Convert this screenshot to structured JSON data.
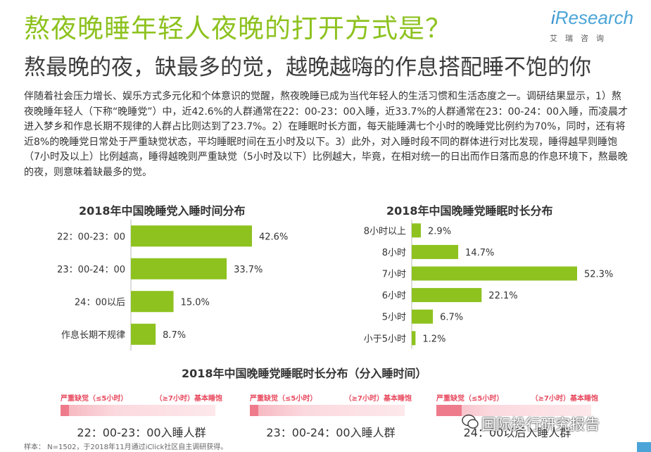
{
  "header": {
    "title": "熬夜晚睡年轻人夜晚的打开方式是？",
    "subtitle": "熬最晚的夜，缺最多的觉，越晚越嗨的作息搭配睡不饱的你"
  },
  "logo": {
    "brand_i": "i",
    "brand_rest": "Research",
    "brand_cn": "艾瑞咨询"
  },
  "intro": "伴随着社会压力增长、娱乐方式多元化和个体意识的觉醒，熬夜晚睡已成为当代年轻人的生活习惯和生活态度之一。调研结果显示，1）熬夜晚睡年轻人（下称“晚睡党”）中，近42.6%的人群通常在22：00-23：00入睡，近33.7%的人群通常在23：00-24：00入睡，而凌晨才进入梦乡和作息长期不规律的人群占比则达到了23.7%。2）在睡眠时长方面，每天能睡满七个小时的晚睡党比例约为70%，同时，还有将近8%的晚睡党日常处于严重缺觉状态，平均睡眠时间在五小时及以下。3）此外，对入睡时段不同的群体进行对比发现，睡得越早则睡饱（7小时及以上）比例越高，睡得越晚则严重缺觉（5小时及以下）比例越大，毕竟，在相对统一的日出而作日落而息的作息环境下，熬最晚的夜，则意味着缺最多的觉。",
  "chart_data": [
    {
      "type": "bar",
      "orientation": "horizontal",
      "title": "2018年中国晚睡党入睡时间分布",
      "categories": [
        "22：00-23：00",
        "23：00-24：00",
        "24：00以后",
        "作息长期不规律"
      ],
      "values": [
        42.6,
        33.7,
        15.0,
        8.7
      ],
      "value_labels": [
        "42.6%",
        "33.7%",
        "15.0%",
        "8.7%"
      ],
      "unit": "%",
      "color": "#8dc21f"
    },
    {
      "type": "bar",
      "orientation": "horizontal",
      "title": "2018年中国晚睡党睡眠时长分布",
      "categories": [
        "8小时以上",
        "8小时",
        "7小时",
        "6小时",
        "5小时",
        "小于5小时"
      ],
      "values": [
        2.9,
        14.7,
        52.3,
        22.1,
        6.7,
        1.2
      ],
      "value_labels": [
        "2.9%",
        "14.7%",
        "52.3%",
        "22.1%",
        "6.7%",
        "1.2%"
      ],
      "unit": "%",
      "color": "#8dc21f"
    }
  ],
  "segmented": {
    "title": "2018年中国晚睡党睡眠时长分布（分入睡时间）",
    "blocks": [
      {
        "left_label": "严重缺觉（≤5小时）",
        "right_label": "（≥7小时）基本睡饱",
        "caption": "22：00-23：00入睡人群"
      },
      {
        "left_label": "严重缺觉（≤5小时）",
        "right_label": "（≥7小时）基本睡饱",
        "caption": "23：00-24：00入睡人群"
      },
      {
        "left_label": "严重缺觉（≤5小时）",
        "right_label": "（≥7小时）基本睡饱",
        "caption": "24：00以后入睡人群"
      }
    ]
  },
  "footnote": "样本： N=1502，于2018年11月通过iClick社区自主调研获得。",
  "watermark": "国际投行研究报告"
}
